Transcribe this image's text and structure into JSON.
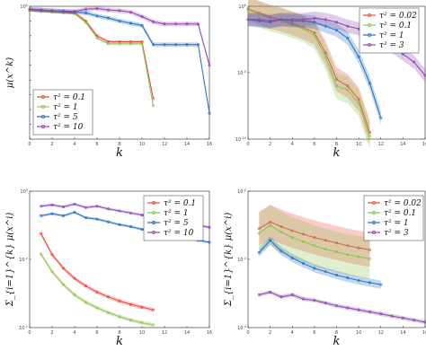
{
  "colors": {
    "c1": "#e8453c",
    "c2": "#8bc34a",
    "c3": "#1f6fbf",
    "c4": "#8e44ad"
  },
  "chart_data": [
    {
      "type": "line",
      "panel": "top-left",
      "xlabel": "k",
      "ylabel": "μ(x^k)",
      "yscale": "log",
      "ylim_exp": [
        -18,
        0
      ],
      "xlim": [
        0,
        16
      ],
      "xticks": [
        "0",
        "2",
        "4",
        "6",
        "8",
        "10",
        "12",
        "14",
        "16"
      ],
      "yticks": [
        "10^0",
        "10^-2",
        "10^-4",
        "10^-6",
        "10^-8",
        "10^-10",
        "10^-12",
        "10^-14",
        "10^-16",
        "10^-18"
      ],
      "ytick_labels_shown": [
        "10^0",
        "",
        "",
        "",
        "",
        "",
        "",
        "",
        "",
        ""
      ],
      "legend_position": "bottom-left",
      "legend": [
        "τ² = 0.1",
        "τ² = 1",
        "τ² = 5",
        "τ² = 10"
      ],
      "series": [
        {
          "name": "τ² = 0.1",
          "color": "c1",
          "band": 0.2,
          "x": [
            0,
            1,
            2,
            3,
            4,
            5,
            6,
            7,
            8,
            9,
            10,
            11
          ],
          "y": [
            -0.5,
            -0.6,
            -0.7,
            -0.8,
            -0.9,
            -2,
            -4,
            -4.8,
            -4.8,
            -4.8,
            -4.8,
            -12.5
          ]
        },
        {
          "name": "τ² = 1",
          "color": "c2",
          "band": 0.15,
          "x": [
            0,
            1,
            2,
            3,
            4,
            5,
            6,
            7,
            8,
            9,
            10,
            11
          ],
          "y": [
            -0.6,
            -0.7,
            -0.8,
            -0.9,
            -1,
            -2.2,
            -4.3,
            -5.1,
            -5.1,
            -5.1,
            -5.1,
            -13.5
          ]
        },
        {
          "name": "τ² = 5",
          "color": "c3",
          "band": 0.3,
          "x": [
            0,
            1,
            2,
            3,
            4,
            5,
            6,
            7,
            8,
            9,
            10,
            11,
            12,
            13,
            14,
            15,
            16
          ],
          "y": [
            -0.4,
            -0.5,
            -0.6,
            -0.7,
            -0.8,
            -0.9,
            -1.3,
            -1.6,
            -2,
            -2.3,
            -2.6,
            -5.2,
            -5.2,
            -5.2,
            -5.2,
            -5.2,
            -14.5
          ]
        },
        {
          "name": "τ² = 10",
          "color": "c4",
          "band": 0.3,
          "x": [
            0,
            1,
            2,
            3,
            4,
            5,
            6,
            7,
            8,
            9,
            10,
            11,
            12,
            13,
            14,
            15,
            16
          ],
          "y": [
            -0.4,
            -0.5,
            -0.6,
            -0.65,
            -0.7,
            -0.4,
            -0.3,
            -0.5,
            -0.6,
            -0.8,
            -1.4,
            -2.1,
            -2.4,
            -2.4,
            -2.4,
            -2.4,
            -8
          ]
        }
      ]
    },
    {
      "type": "line",
      "panel": "top-right",
      "xlabel": "k",
      "ylabel": "",
      "yscale": "log",
      "ylim_exp": [
        -10,
        0
      ],
      "xlim": [
        0,
        16
      ],
      "xticks": [
        "0",
        "2",
        "4",
        "6",
        "8",
        "10",
        "12",
        "14",
        "16"
      ],
      "yticks": [
        "10^0",
        "10^-5",
        "10^-10"
      ],
      "legend_position": "top-right",
      "legend": [
        "τ² = 0.02",
        "τ² = 0.1",
        "τ² = 1",
        "τ² = 3"
      ],
      "series": [
        {
          "name": "τ² = 0.02",
          "color": "c1",
          "band": 0.9,
          "x": [
            0,
            1,
            2,
            3,
            4,
            5,
            6,
            7,
            8,
            9,
            10,
            11
          ],
          "y": [
            -0.2,
            -0.5,
            -0.8,
            -1.0,
            -1.3,
            -1.6,
            -2.0,
            -3.5,
            -5.5,
            -6.0,
            -7.0,
            -9.5
          ]
        },
        {
          "name": "τ² = 0.1",
          "color": "c2",
          "band": 1.0,
          "x": [
            0,
            1,
            2,
            3,
            4,
            5,
            6,
            7,
            8,
            9,
            10,
            11
          ],
          "y": [
            -0.3,
            -0.6,
            -0.9,
            -1.1,
            -1.4,
            -1.7,
            -2.2,
            -3.8,
            -6,
            -6.3,
            -7.3,
            -9.8
          ]
        },
        {
          "name": "τ² = 1",
          "color": "c3",
          "band": 0.5,
          "x": [
            0,
            1,
            2,
            3,
            4,
            5,
            6,
            7,
            8,
            9,
            10,
            11,
            12
          ],
          "y": [
            -1.0,
            -1.1,
            -1.2,
            -1.0,
            -1.1,
            -1.1,
            -1.2,
            -1.5,
            -1.8,
            -2.4,
            -3.8,
            -5.8,
            -8.4
          ]
        },
        {
          "name": "τ² = 3",
          "color": "c4",
          "band": 0.5,
          "x": [
            0,
            1,
            2,
            3,
            4,
            5,
            6,
            7,
            8,
            9,
            10,
            11,
            12,
            13,
            14,
            15,
            16
          ],
          "y": [
            -1.0,
            -1.0,
            -1.1,
            -1.0,
            -1.0,
            -1.0,
            -0.9,
            -1.0,
            -1.2,
            -1.5,
            -1.7,
            -2.0,
            -2.5,
            -3.0,
            -3.6,
            -4.2,
            -5.2
          ]
        }
      ]
    },
    {
      "type": "line",
      "panel": "bottom-left",
      "xlabel": "k",
      "ylabel": "Σ_{i=1}^{k} μ(x^i)",
      "yscale": "log",
      "ylim_exp": [
        -2,
        0
      ],
      "xlim": [
        0,
        16
      ],
      "xticks": [
        "0",
        "2",
        "4",
        "6",
        "8",
        "10",
        "12",
        "14",
        "16"
      ],
      "yticks": [
        "10^0",
        "10^-1",
        "10^-2"
      ],
      "legend_position": "top-right",
      "legend": [
        "τ² = 0.1",
        "τ² = 1",
        "τ² = 5",
        "τ² = 10"
      ],
      "series": [
        {
          "name": "τ² = 0.1",
          "color": "c1",
          "band": 0.03,
          "x": [
            1,
            2,
            3,
            4,
            5,
            6,
            7,
            8,
            9,
            10,
            11
          ],
          "y": [
            -0.62,
            -0.93,
            -1.13,
            -1.28,
            -1.39,
            -1.48,
            -1.55,
            -1.61,
            -1.66,
            -1.7,
            -1.74
          ]
        },
        {
          "name": "τ² = 1",
          "color": "c2",
          "band": 0.03,
          "x": [
            1,
            2,
            3,
            4,
            5,
            6,
            7,
            8,
            9,
            10,
            11
          ],
          "y": [
            -0.92,
            -1.18,
            -1.37,
            -1.52,
            -1.63,
            -1.71,
            -1.78,
            -1.84,
            -1.89,
            -1.93,
            -1.96
          ]
        },
        {
          "name": "τ² = 5",
          "color": "c3",
          "band": 0.02,
          "x": [
            1,
            2,
            3,
            4,
            5,
            6,
            7,
            8,
            9,
            10,
            11,
            12,
            13,
            14,
            15,
            16
          ],
          "y": [
            -0.36,
            -0.33,
            -0.36,
            -0.31,
            -0.39,
            -0.41,
            -0.45,
            -0.49,
            -0.52,
            -0.56,
            -0.6,
            -0.63,
            -0.66,
            -0.69,
            -0.72,
            -0.75
          ]
        },
        {
          "name": "τ² = 10",
          "color": "c4",
          "band": 0.02,
          "x": [
            1,
            2,
            3,
            4,
            5,
            6,
            7,
            8,
            9,
            10,
            11,
            12,
            13,
            14,
            15,
            16
          ],
          "y": [
            -0.22,
            -0.2,
            -0.23,
            -0.19,
            -0.24,
            -0.22,
            -0.26,
            -0.29,
            -0.32,
            -0.35,
            -0.38,
            -0.41,
            -0.44,
            -0.47,
            -0.5,
            -0.53
          ]
        }
      ]
    },
    {
      "type": "line",
      "panel": "bottom-right",
      "xlabel": "k",
      "ylabel": "Σ_{i=1}^{k} μ(x^i)",
      "yscale": "log",
      "ylim_exp": [
        -4,
        -2
      ],
      "xlim": [
        0,
        16
      ],
      "xticks": [
        "0",
        "2",
        "4",
        "6",
        "8",
        "10",
        "12",
        "14",
        "16"
      ],
      "yticks": [
        "10^-2",
        "10^-3",
        "10^-4"
      ],
      "legend_position": "top-right",
      "legend": [
        "τ² = 0.02",
        "τ² = 0.1",
        "τ² = 1",
        "τ² = 3"
      ],
      "series": [
        {
          "name": "τ² = 0.02",
          "color": "c1",
          "band": 0.25,
          "x": [
            1,
            2,
            3,
            4,
            5,
            6,
            7,
            8,
            9,
            10,
            11
          ],
          "y": [
            -2.55,
            -2.45,
            -2.52,
            -2.58,
            -2.63,
            -2.68,
            -2.72,
            -2.76,
            -2.8,
            -2.83,
            -2.86
          ]
        },
        {
          "name": "τ² = 0.1",
          "color": "c2",
          "band": 0.3,
          "x": [
            1,
            2,
            3,
            4,
            5,
            6,
            7,
            8,
            9,
            10,
            11
          ],
          "y": [
            -2.62,
            -2.5,
            -2.6,
            -2.68,
            -2.74,
            -2.8,
            -2.85,
            -2.89,
            -2.93,
            -2.96,
            -2.99
          ]
        },
        {
          "name": "τ² = 1",
          "color": "c3",
          "band": 0.06,
          "x": [
            1,
            2,
            3,
            4,
            5,
            6,
            7,
            8,
            9,
            10,
            11,
            12
          ],
          "y": [
            -2.9,
            -2.72,
            -2.88,
            -2.98,
            -3.06,
            -3.13,
            -3.18,
            -3.23,
            -3.27,
            -3.31,
            -3.34,
            -3.37
          ]
        },
        {
          "name": "τ² = 3",
          "color": "c4",
          "band": 0.03,
          "x": [
            1,
            2,
            3,
            4,
            5,
            6,
            7,
            8,
            9,
            10,
            11,
            12,
            13,
            14,
            15,
            16
          ],
          "y": [
            -3.52,
            -3.48,
            -3.55,
            -3.52,
            -3.58,
            -3.6,
            -3.64,
            -3.68,
            -3.71,
            -3.74,
            -3.77,
            -3.8,
            -3.83,
            -3.86,
            -3.89,
            -3.92
          ]
        }
      ]
    }
  ]
}
